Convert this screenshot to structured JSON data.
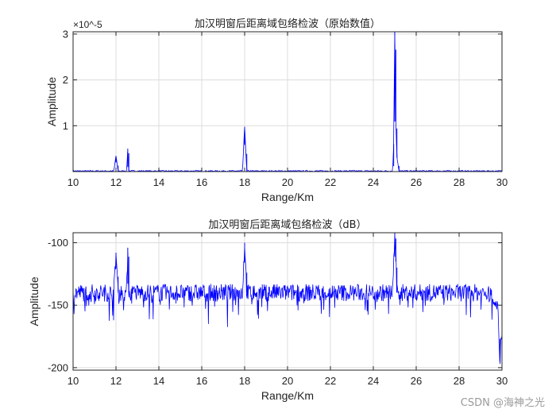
{
  "watermark": "CSDN @海神之光",
  "colors": {
    "line": "#0000ff",
    "grid": "#dcdcdc",
    "axes": "#262626"
  },
  "chart_data": [
    {
      "type": "line",
      "title": "加汉明窗后距离域包络检波（原始数值）",
      "xlabel": "Range/Km",
      "ylabel": "Amplitude",
      "xlim": [
        10,
        30
      ],
      "ylim": [
        0,
        3.05
      ],
      "y_multiplier_label": "×10^-5",
      "x_ticks": [
        "10",
        "12",
        "14",
        "16",
        "18",
        "20",
        "22",
        "24",
        "26",
        "28",
        "30"
      ],
      "y_ticks": [
        "1",
        "2",
        "3"
      ],
      "grid": true,
      "series": [
        {
          "x": [
            10,
            11.9,
            12.0,
            12.1,
            12.5,
            12.55,
            12.6,
            17.9,
            18.0,
            18.1,
            24.9,
            24.95,
            25.0,
            25.05,
            25.1,
            25.2,
            29.6,
            30
          ],
          "values": [
            0.0,
            0.0,
            0.33,
            0.0,
            0.0,
            0.5,
            0.0,
            0.0,
            0.97,
            0.0,
            0.0,
            0.6,
            3.05,
            1.1,
            0.3,
            0.0,
            0.0,
            0.0
          ]
        }
      ]
    },
    {
      "type": "line",
      "title": "加汉明窗后距离域包络检波（dB）",
      "xlabel": "Range/Km",
      "ylabel": "Amplitude",
      "xlim": [
        10,
        30
      ],
      "ylim": [
        -202,
        -92
      ],
      "x_ticks": [
        "10",
        "12",
        "14",
        "16",
        "18",
        "20",
        "22",
        "24",
        "26",
        "28",
        "30"
      ],
      "y_ticks": [
        "-200",
        "-150",
        "-100"
      ],
      "grid": true,
      "series": [
        {
          "x": [
            10,
            11.9,
            12.0,
            12.1,
            12.5,
            12.55,
            12.6,
            17.9,
            18.0,
            18.1,
            24.9,
            25.0,
            25.05,
            25.1,
            29.0,
            29.5,
            29.8,
            29.9,
            30
          ],
          "values": [
            -140,
            -140,
            -108,
            -140,
            -140,
            -104,
            -140,
            -140,
            -100,
            -140,
            -140,
            -92,
            -115,
            -140,
            -140,
            -142,
            -150,
            -195,
            -170
          ]
        }
      ]
    }
  ]
}
